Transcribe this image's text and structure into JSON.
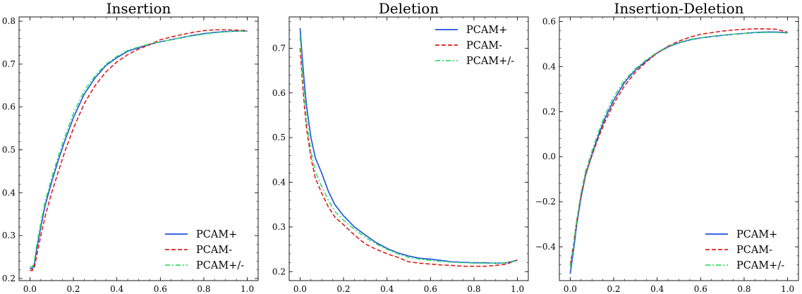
{
  "chart_data": [
    {
      "type": "line",
      "title": "Insertion",
      "xlim": [
        -0.05,
        1.05
      ],
      "ylim": [
        0.195,
        0.81
      ],
      "xticks": [
        0.0,
        0.2,
        0.4,
        0.6,
        0.8,
        1.0
      ],
      "xtick_labels": [
        "0.0",
        "0.2",
        "0.4",
        "0.6",
        "0.8",
        "1.0"
      ],
      "yticks": [
        0.2,
        0.3,
        0.4,
        0.5,
        0.6,
        0.7,
        0.8
      ],
      "ytick_labels": [
        "0.2",
        "0.3",
        "0.4",
        "0.5",
        "0.6",
        "0.7",
        "0.8"
      ],
      "legend_position": "lower right",
      "series": [
        {
          "name": "PCAM+",
          "x": [
            0.0,
            0.01,
            0.02,
            0.03,
            0.05,
            0.07,
            0.1,
            0.13,
            0.16,
            0.2,
            0.25,
            0.3,
            0.35,
            0.4,
            0.45,
            0.5,
            0.55,
            0.6,
            0.65,
            0.7,
            0.75,
            0.8,
            0.85,
            0.9,
            0.95,
            1.0
          ],
          "values": [
            0.225,
            0.222,
            0.232,
            0.265,
            0.32,
            0.37,
            0.425,
            0.475,
            0.52,
            0.575,
            0.63,
            0.668,
            0.697,
            0.715,
            0.73,
            0.738,
            0.746,
            0.752,
            0.757,
            0.762,
            0.767,
            0.771,
            0.774,
            0.776,
            0.777,
            0.777
          ]
        },
        {
          "name": "PCAM-",
          "x": [
            0.0,
            0.01,
            0.02,
            0.03,
            0.05,
            0.07,
            0.1,
            0.13,
            0.16,
            0.2,
            0.25,
            0.3,
            0.35,
            0.4,
            0.45,
            0.5,
            0.55,
            0.6,
            0.65,
            0.7,
            0.75,
            0.8,
            0.85,
            0.9,
            0.95,
            1.0
          ],
          "values": [
            0.22,
            0.218,
            0.225,
            0.25,
            0.3,
            0.345,
            0.4,
            0.448,
            0.495,
            0.55,
            0.608,
            0.65,
            0.682,
            0.705,
            0.722,
            0.735,
            0.745,
            0.757,
            0.763,
            0.769,
            0.774,
            0.778,
            0.78,
            0.78,
            0.779,
            0.778
          ]
        },
        {
          "name": "PCAM+/-",
          "x": [
            0.0,
            0.01,
            0.02,
            0.03,
            0.05,
            0.07,
            0.1,
            0.13,
            0.16,
            0.2,
            0.25,
            0.3,
            0.35,
            0.4,
            0.45,
            0.5,
            0.55,
            0.6,
            0.65,
            0.7,
            0.75,
            0.8,
            0.85,
            0.9,
            0.95,
            1.0
          ],
          "values": [
            0.228,
            0.226,
            0.238,
            0.275,
            0.33,
            0.38,
            0.435,
            0.485,
            0.53,
            0.585,
            0.638,
            0.673,
            0.7,
            0.718,
            0.732,
            0.74,
            0.747,
            0.752,
            0.757,
            0.762,
            0.766,
            0.77,
            0.773,
            0.775,
            0.777,
            0.777
          ]
        }
      ]
    },
    {
      "type": "line",
      "title": "Deletion",
      "xlim": [
        -0.05,
        1.05
      ],
      "ylim": [
        0.18,
        0.77
      ],
      "xticks": [
        0.0,
        0.2,
        0.4,
        0.6,
        0.8,
        1.0
      ],
      "xtick_labels": [
        "0.0",
        "0.2",
        "0.4",
        "0.6",
        "0.8",
        "1.0"
      ],
      "yticks": [
        0.2,
        0.3,
        0.4,
        0.5,
        0.6,
        0.7
      ],
      "ytick_labels": [
        "0.2",
        "0.3",
        "0.4",
        "0.5",
        "0.6",
        "0.7"
      ],
      "legend_position": "upper right",
      "series": [
        {
          "name": "PCAM+",
          "x": [
            0.0,
            0.01,
            0.02,
            0.03,
            0.05,
            0.07,
            0.1,
            0.13,
            0.16,
            0.2,
            0.25,
            0.3,
            0.35,
            0.4,
            0.45,
            0.5,
            0.55,
            0.6,
            0.65,
            0.7,
            0.75,
            0.8,
            0.85,
            0.9,
            0.95,
            1.0
          ],
          "values": [
            0.745,
            0.68,
            0.62,
            0.57,
            0.5,
            0.455,
            0.42,
            0.38,
            0.35,
            0.325,
            0.3,
            0.282,
            0.265,
            0.252,
            0.242,
            0.235,
            0.23,
            0.228,
            0.225,
            0.222,
            0.221,
            0.22,
            0.22,
            0.219,
            0.22,
            0.226
          ]
        },
        {
          "name": "PCAM-",
          "x": [
            0.0,
            0.01,
            0.02,
            0.03,
            0.05,
            0.07,
            0.1,
            0.13,
            0.16,
            0.2,
            0.25,
            0.3,
            0.35,
            0.4,
            0.45,
            0.5,
            0.55,
            0.6,
            0.65,
            0.7,
            0.75,
            0.8,
            0.85,
            0.9,
            0.95,
            1.0
          ],
          "values": [
            0.7,
            0.63,
            0.57,
            0.52,
            0.455,
            0.41,
            0.375,
            0.345,
            0.322,
            0.305,
            0.282,
            0.262,
            0.25,
            0.24,
            0.232,
            0.222,
            0.219,
            0.217,
            0.215,
            0.214,
            0.212,
            0.212,
            0.212,
            0.214,
            0.217,
            0.226
          ]
        },
        {
          "name": "PCAM+/-",
          "x": [
            0.0,
            0.01,
            0.02,
            0.03,
            0.05,
            0.07,
            0.1,
            0.13,
            0.16,
            0.2,
            0.25,
            0.3,
            0.35,
            0.4,
            0.45,
            0.5,
            0.55,
            0.6,
            0.65,
            0.7,
            0.75,
            0.8,
            0.85,
            0.9,
            0.95,
            1.0
          ],
          "values": [
            0.725,
            0.65,
            0.59,
            0.54,
            0.47,
            0.425,
            0.39,
            0.36,
            0.335,
            0.315,
            0.295,
            0.277,
            0.262,
            0.25,
            0.24,
            0.232,
            0.228,
            0.225,
            0.223,
            0.221,
            0.22,
            0.219,
            0.219,
            0.219,
            0.22,
            0.224
          ]
        }
      ]
    },
    {
      "type": "line",
      "title": "Insertion-Deletion",
      "xlim": [
        -0.05,
        1.05
      ],
      "ylim": [
        -0.55,
        0.62
      ],
      "xticks": [
        0.0,
        0.2,
        0.4,
        0.6,
        0.8,
        1.0
      ],
      "xtick_labels": [
        "0.0",
        "0.2",
        "0.4",
        "0.6",
        "0.8",
        "1.0"
      ],
      "yticks": [
        -0.4,
        -0.2,
        0.0,
        0.2,
        0.4,
        0.6
      ],
      "ytick_labels": [
        "−0.4",
        "−0.2",
        "0.0",
        "0.2",
        "0.4",
        "0.6"
      ],
      "legend_position": "lower right",
      "series": [
        {
          "name": "PCAM+",
          "x": [
            0.0,
            0.01,
            0.02,
            0.03,
            0.05,
            0.07,
            0.1,
            0.13,
            0.16,
            0.2,
            0.25,
            0.3,
            0.35,
            0.4,
            0.45,
            0.5,
            0.55,
            0.6,
            0.65,
            0.7,
            0.75,
            0.8,
            0.85,
            0.9,
            0.95,
            1.0
          ],
          "values": [
            -0.52,
            -0.45,
            -0.38,
            -0.3,
            -0.18,
            -0.085,
            0.01,
            0.095,
            0.17,
            0.25,
            0.33,
            0.385,
            0.425,
            0.46,
            0.487,
            0.505,
            0.518,
            0.527,
            0.533,
            0.538,
            0.543,
            0.547,
            0.551,
            0.553,
            0.553,
            0.55
          ]
        },
        {
          "name": "PCAM-",
          "x": [
            0.0,
            0.01,
            0.02,
            0.03,
            0.05,
            0.07,
            0.1,
            0.13,
            0.16,
            0.2,
            0.25,
            0.3,
            0.35,
            0.4,
            0.45,
            0.5,
            0.55,
            0.6,
            0.65,
            0.7,
            0.75,
            0.8,
            0.85,
            0.9,
            0.95,
            1.0
          ],
          "values": [
            -0.48,
            -0.42,
            -0.355,
            -0.285,
            -0.17,
            -0.08,
            0.005,
            0.085,
            0.155,
            0.235,
            0.315,
            0.375,
            0.42,
            0.46,
            0.49,
            0.513,
            0.53,
            0.543,
            0.55,
            0.557,
            0.562,
            0.565,
            0.567,
            0.567,
            0.565,
            0.552
          ]
        },
        {
          "name": "PCAM+/-",
          "x": [
            0.0,
            0.01,
            0.02,
            0.03,
            0.05,
            0.07,
            0.1,
            0.13,
            0.16,
            0.2,
            0.25,
            0.3,
            0.35,
            0.4,
            0.45,
            0.5,
            0.55,
            0.6,
            0.65,
            0.7,
            0.75,
            0.8,
            0.85,
            0.9,
            0.95,
            1.0
          ],
          "values": [
            -0.49,
            -0.425,
            -0.355,
            -0.28,
            -0.16,
            -0.065,
            0.025,
            0.11,
            0.185,
            0.265,
            0.34,
            0.39,
            0.43,
            0.463,
            0.49,
            0.507,
            0.52,
            0.528,
            0.534,
            0.539,
            0.543,
            0.547,
            0.55,
            0.551,
            0.551,
            0.548
          ]
        }
      ]
    }
  ],
  "series_styles": [
    {
      "color": "#1f4fe0",
      "dash": "solid"
    },
    {
      "color": "#e01b1b",
      "dash": "dashed"
    },
    {
      "color": "#33e066",
      "dash": "dashdot"
    }
  ]
}
